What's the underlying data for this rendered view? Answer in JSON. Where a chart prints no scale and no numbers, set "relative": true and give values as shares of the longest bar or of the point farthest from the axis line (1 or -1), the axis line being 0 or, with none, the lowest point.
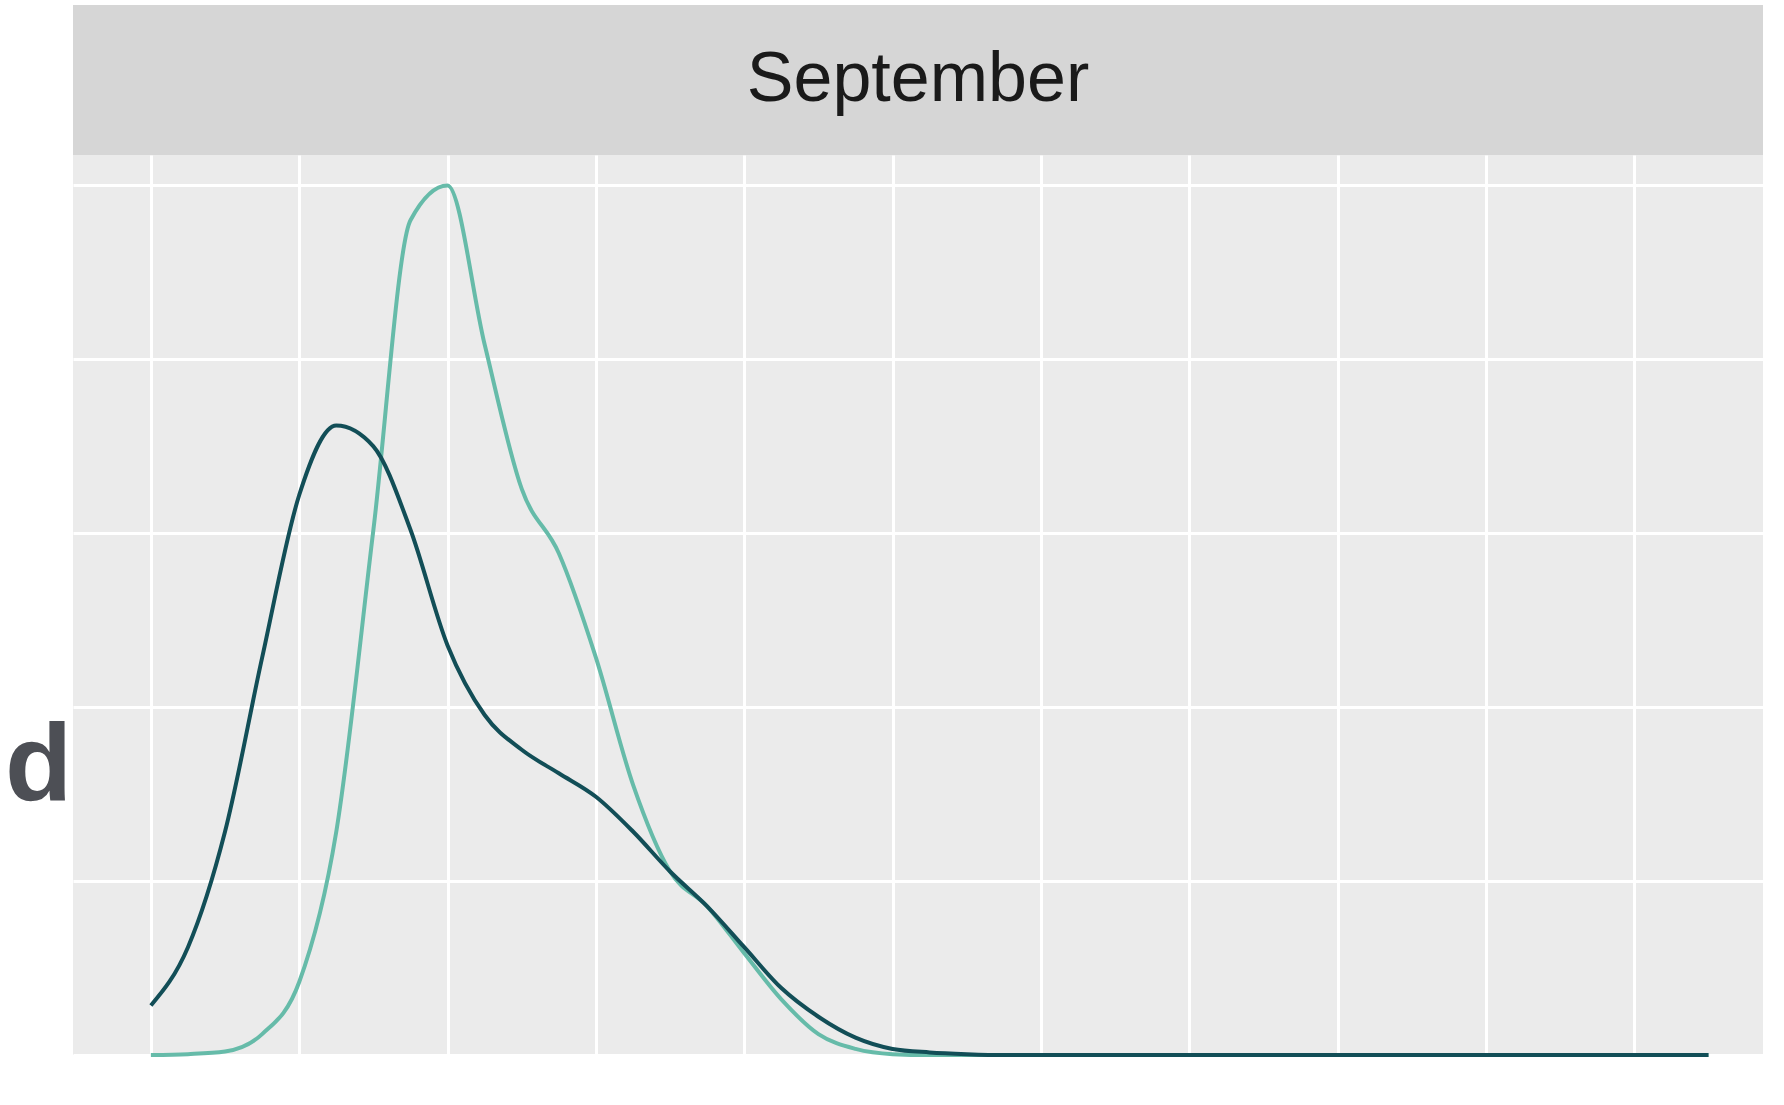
{
  "chart_data": {
    "type": "line",
    "title": "September",
    "relative": true,
    "grid": true,
    "tick_labels": false,
    "categories": [
      null,
      null,
      null,
      null,
      null,
      null,
      null,
      null,
      null,
      null,
      null,
      null,
      null,
      null,
      null,
      null,
      null,
      null,
      null,
      null,
      null,
      null,
      null,
      null,
      null,
      null,
      null,
      null,
      null,
      null,
      null,
      null,
      null,
      null,
      null,
      null,
      null,
      null,
      null,
      null,
      null,
      null,
      null
    ],
    "series": [
      {
        "color": "#66bba9",
        "values": [
          0,
          0.001,
          0.004,
          0.024,
          0.084,
          0.257,
          0.604,
          0.96,
          1,
          0.817,
          0.651,
          0.577,
          0.457,
          0.311,
          0.211,
          0.171,
          0.117,
          0.064,
          0.024,
          0.007,
          0.001,
          0,
          0,
          0,
          0,
          0,
          0,
          0,
          0,
          0,
          0,
          0,
          0,
          0,
          0,
          0,
          0,
          0,
          0,
          0,
          0,
          0,
          0
        ]
      },
      {
        "color": "#124e57",
        "values": [
          0.057,
          0.124,
          0.257,
          0.457,
          0.644,
          0.724,
          0.7,
          0.604,
          0.471,
          0.391,
          0.351,
          0.324,
          0.297,
          0.257,
          0.211,
          0.171,
          0.124,
          0.077,
          0.044,
          0.02,
          0.007,
          0.003,
          0.001,
          0,
          0,
          0,
          0,
          0,
          0,
          0,
          0,
          0,
          0,
          0,
          0,
          0,
          0,
          0,
          0,
          0,
          0,
          0,
          0
        ]
      }
    ],
    "annotations": [
      "d"
    ]
  }
}
